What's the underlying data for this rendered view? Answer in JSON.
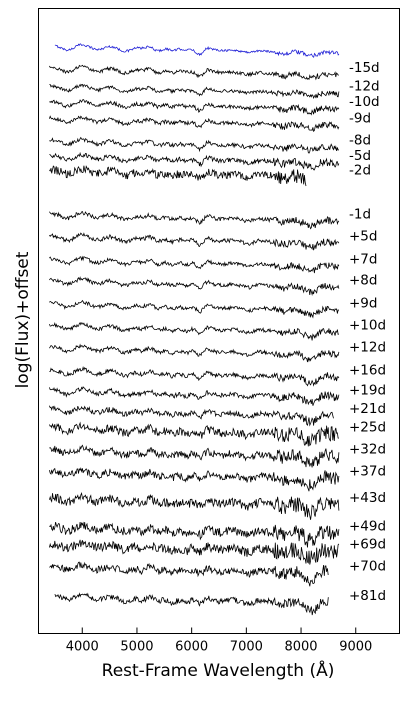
{
  "chart_data": {
    "type": "line",
    "xlabel": "Rest-Frame Wavelength (Å)",
    "ylabel": "log(Flux)+offset",
    "xlim": [
      3200,
      9800
    ],
    "xticks": [
      4000,
      5000,
      6000,
      7000,
      8000,
      9000
    ],
    "yticks": [],
    "grid": false,
    "legend": "none",
    "colors": {
      "first_spectrum": "#1f1fd6",
      "spectra": "#000000"
    },
    "series": [
      {
        "name": "",
        "x_range": [
          3500,
          8700
        ],
        "offset": 0.0,
        "noise": 0.25
      },
      {
        "name": "-15d",
        "x_range": [
          3400,
          8700
        ],
        "offset": 1.0,
        "noise": 0.35
      },
      {
        "name": "-12d",
        "x_range": [
          3400,
          8700
        ],
        "offset": 1.85,
        "noise": 0.35
      },
      {
        "name": "-10d",
        "x_range": [
          3400,
          8700
        ],
        "offset": 2.55,
        "noise": 0.4
      },
      {
        "name": "-9d",
        "x_range": [
          3400,
          8700
        ],
        "offset": 3.3,
        "noise": 0.4
      },
      {
        "name": "-8d",
        "x_range": [
          3400,
          8700
        ],
        "offset": 4.3,
        "noise": 0.4
      },
      {
        "name": "-5d",
        "x_range": [
          3400,
          8700
        ],
        "offset": 5.0,
        "noise": 0.5
      },
      {
        "name": "-2d",
        "x_range": [
          3400,
          8100
        ],
        "offset": 5.65,
        "noise": 0.9
      },
      {
        "name": "-1d",
        "x_range": [
          3400,
          8700
        ],
        "offset": 7.65,
        "noise": 0.45
      },
      {
        "name": "+5d",
        "x_range": [
          3400,
          8700
        ],
        "offset": 8.65,
        "noise": 0.45
      },
      {
        "name": "+7d",
        "x_range": [
          3400,
          8700
        ],
        "offset": 9.7,
        "noise": 0.4
      },
      {
        "name": "+8d",
        "x_range": [
          3400,
          8700
        ],
        "offset": 10.65,
        "noise": 0.4
      },
      {
        "name": "+9d",
        "x_range": [
          3400,
          8700
        ],
        "offset": 11.7,
        "noise": 0.4
      },
      {
        "name": "+10d",
        "x_range": [
          3400,
          8700
        ],
        "offset": 12.7,
        "noise": 0.4
      },
      {
        "name": "+12d",
        "x_range": [
          3400,
          8700
        ],
        "offset": 13.7,
        "noise": 0.4
      },
      {
        "name": "+16d",
        "x_range": [
          3400,
          8700
        ],
        "offset": 14.75,
        "noise": 0.45
      },
      {
        "name": "+19d",
        "x_range": [
          3400,
          8700
        ],
        "offset": 15.65,
        "noise": 0.5
      },
      {
        "name": "+21d",
        "x_range": [
          3400,
          8600
        ],
        "offset": 16.5,
        "noise": 0.55
      },
      {
        "name": "+25d",
        "x_range": [
          3400,
          8700
        ],
        "offset": 17.35,
        "noise": 0.9
      },
      {
        "name": "+32d",
        "x_range": [
          3400,
          8700
        ],
        "offset": 18.35,
        "noise": 0.8
      },
      {
        "name": "+37d",
        "x_range": [
          3400,
          8700
        ],
        "offset": 19.35,
        "noise": 0.8
      },
      {
        "name": "+43d",
        "x_range": [
          3400,
          8700
        ],
        "offset": 20.55,
        "noise": 1.0
      },
      {
        "name": "+49d",
        "x_range": [
          3400,
          8700
        ],
        "offset": 21.85,
        "noise": 1.0
      },
      {
        "name": "+69d",
        "x_range": [
          3400,
          8700
        ],
        "offset": 22.65,
        "noise": 1.0
      },
      {
        "name": "+70d",
        "x_range": [
          3400,
          8500
        ],
        "offset": 23.65,
        "noise": 0.8
      },
      {
        "name": "+81d",
        "x_range": [
          3500,
          8500
        ],
        "offset": 25.0,
        "noise": 0.6
      }
    ]
  }
}
